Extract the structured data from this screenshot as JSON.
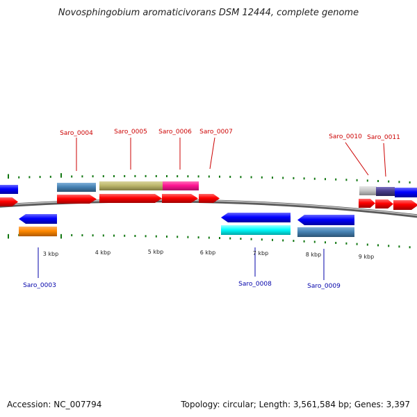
{
  "title": "Novosphingobium aromaticivorans DSM 12444, complete genome",
  "footer": {
    "accession": "Accession: NC_007794",
    "summary": "Topology: circular; Length: 3,561,584 bp; Genes: 3,397"
  },
  "colors": {
    "forward_label": "#cc0000",
    "reverse_label": "#0000aa",
    "tick": "#117711",
    "backbone": "#888888"
  },
  "scale_labels": [
    "3 kbp",
    "4 kbp",
    "5 kbp",
    "6 kbp",
    "7 kbp",
    "8 kbp",
    "9 kbp"
  ],
  "gene_labels_top": [
    "Saro_0004",
    "Saro_0005",
    "Saro_0006",
    "Saro_0007",
    "Saro_0010",
    "Saro_0011"
  ],
  "gene_labels_bottom": [
    "Saro_0003",
    "Saro_0008",
    "Saro_0009"
  ],
  "feature_colors": {
    "cds_forward": "#ff0000",
    "cds_reverse": "#0000ff",
    "orange": "#ff8800",
    "steelblue": "#4682b4",
    "khaki": "#bdb76b",
    "magenta": "#ff1493",
    "cyan": "#00ffff",
    "lightgray": "#c8c8c8",
    "darkslate": "#483d8b"
  }
}
